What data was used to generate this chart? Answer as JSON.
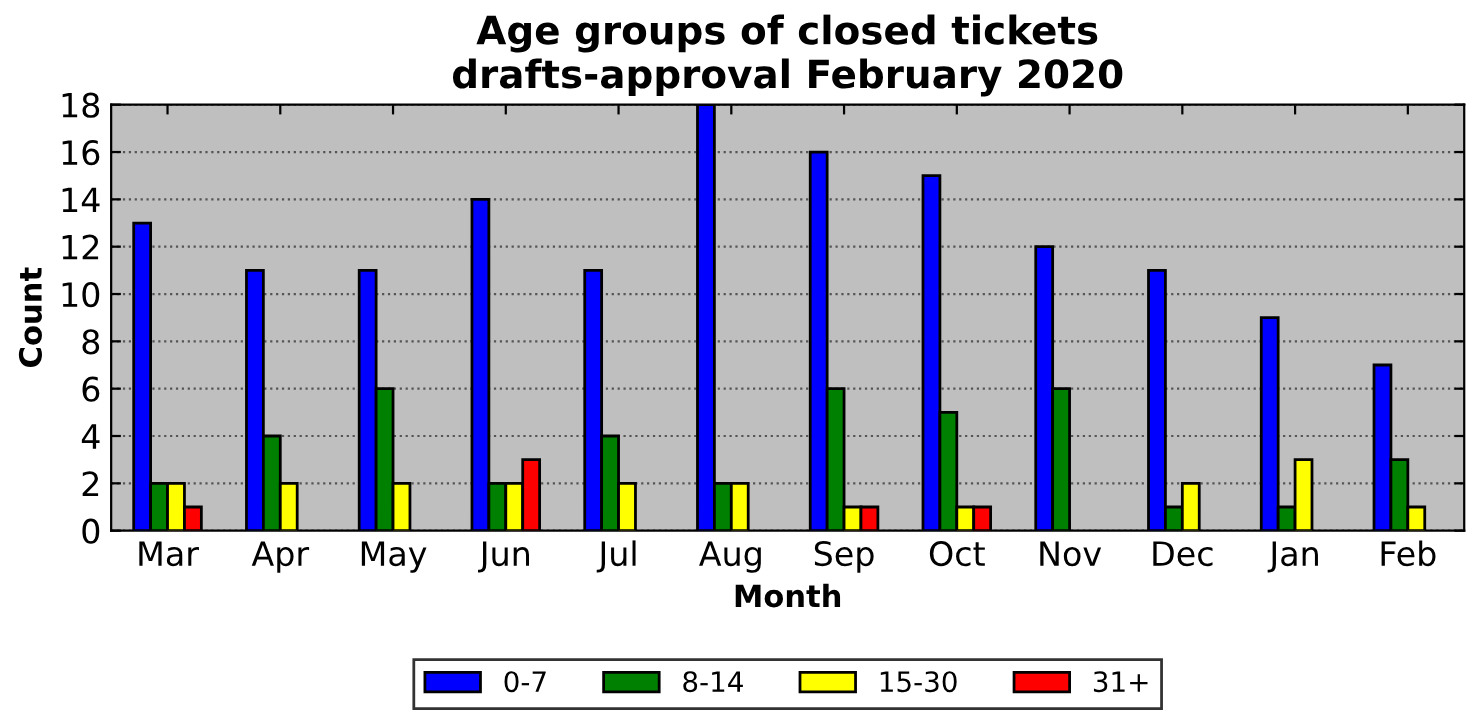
{
  "chart_data": {
    "type": "bar",
    "title": "Age groups of closed tickets\ndrafts-approval February 2020",
    "xlabel": "Month",
    "ylabel": "Count",
    "categories": [
      "Mar",
      "Apr",
      "May",
      "Jun",
      "Jul",
      "Aug",
      "Sep",
      "Oct",
      "Nov",
      "Dec",
      "Jan",
      "Feb"
    ],
    "series": [
      {
        "name": "0-7",
        "color": "#0000ff",
        "values": [
          13,
          11,
          11,
          14,
          11,
          18,
          16,
          15,
          12,
          11,
          9,
          7
        ]
      },
      {
        "name": "8-14",
        "color": "#008000",
        "values": [
          2,
          4,
          6,
          2,
          4,
          2,
          6,
          5,
          6,
          1,
          1,
          3
        ]
      },
      {
        "name": "15-30",
        "color": "#ffff00",
        "values": [
          2,
          2,
          2,
          2,
          2,
          2,
          1,
          1,
          0,
          2,
          3,
          1
        ]
      },
      {
        "name": "31+",
        "color": "#ff0000",
        "values": [
          1,
          0,
          0,
          3,
          0,
          0,
          1,
          1,
          0,
          0,
          0,
          0
        ]
      }
    ],
    "ylim": [
      0,
      18
    ],
    "yticks": [
      0,
      2,
      4,
      6,
      8,
      10,
      12,
      14,
      16,
      18
    ],
    "grid": "y",
    "legend": "bottom"
  }
}
